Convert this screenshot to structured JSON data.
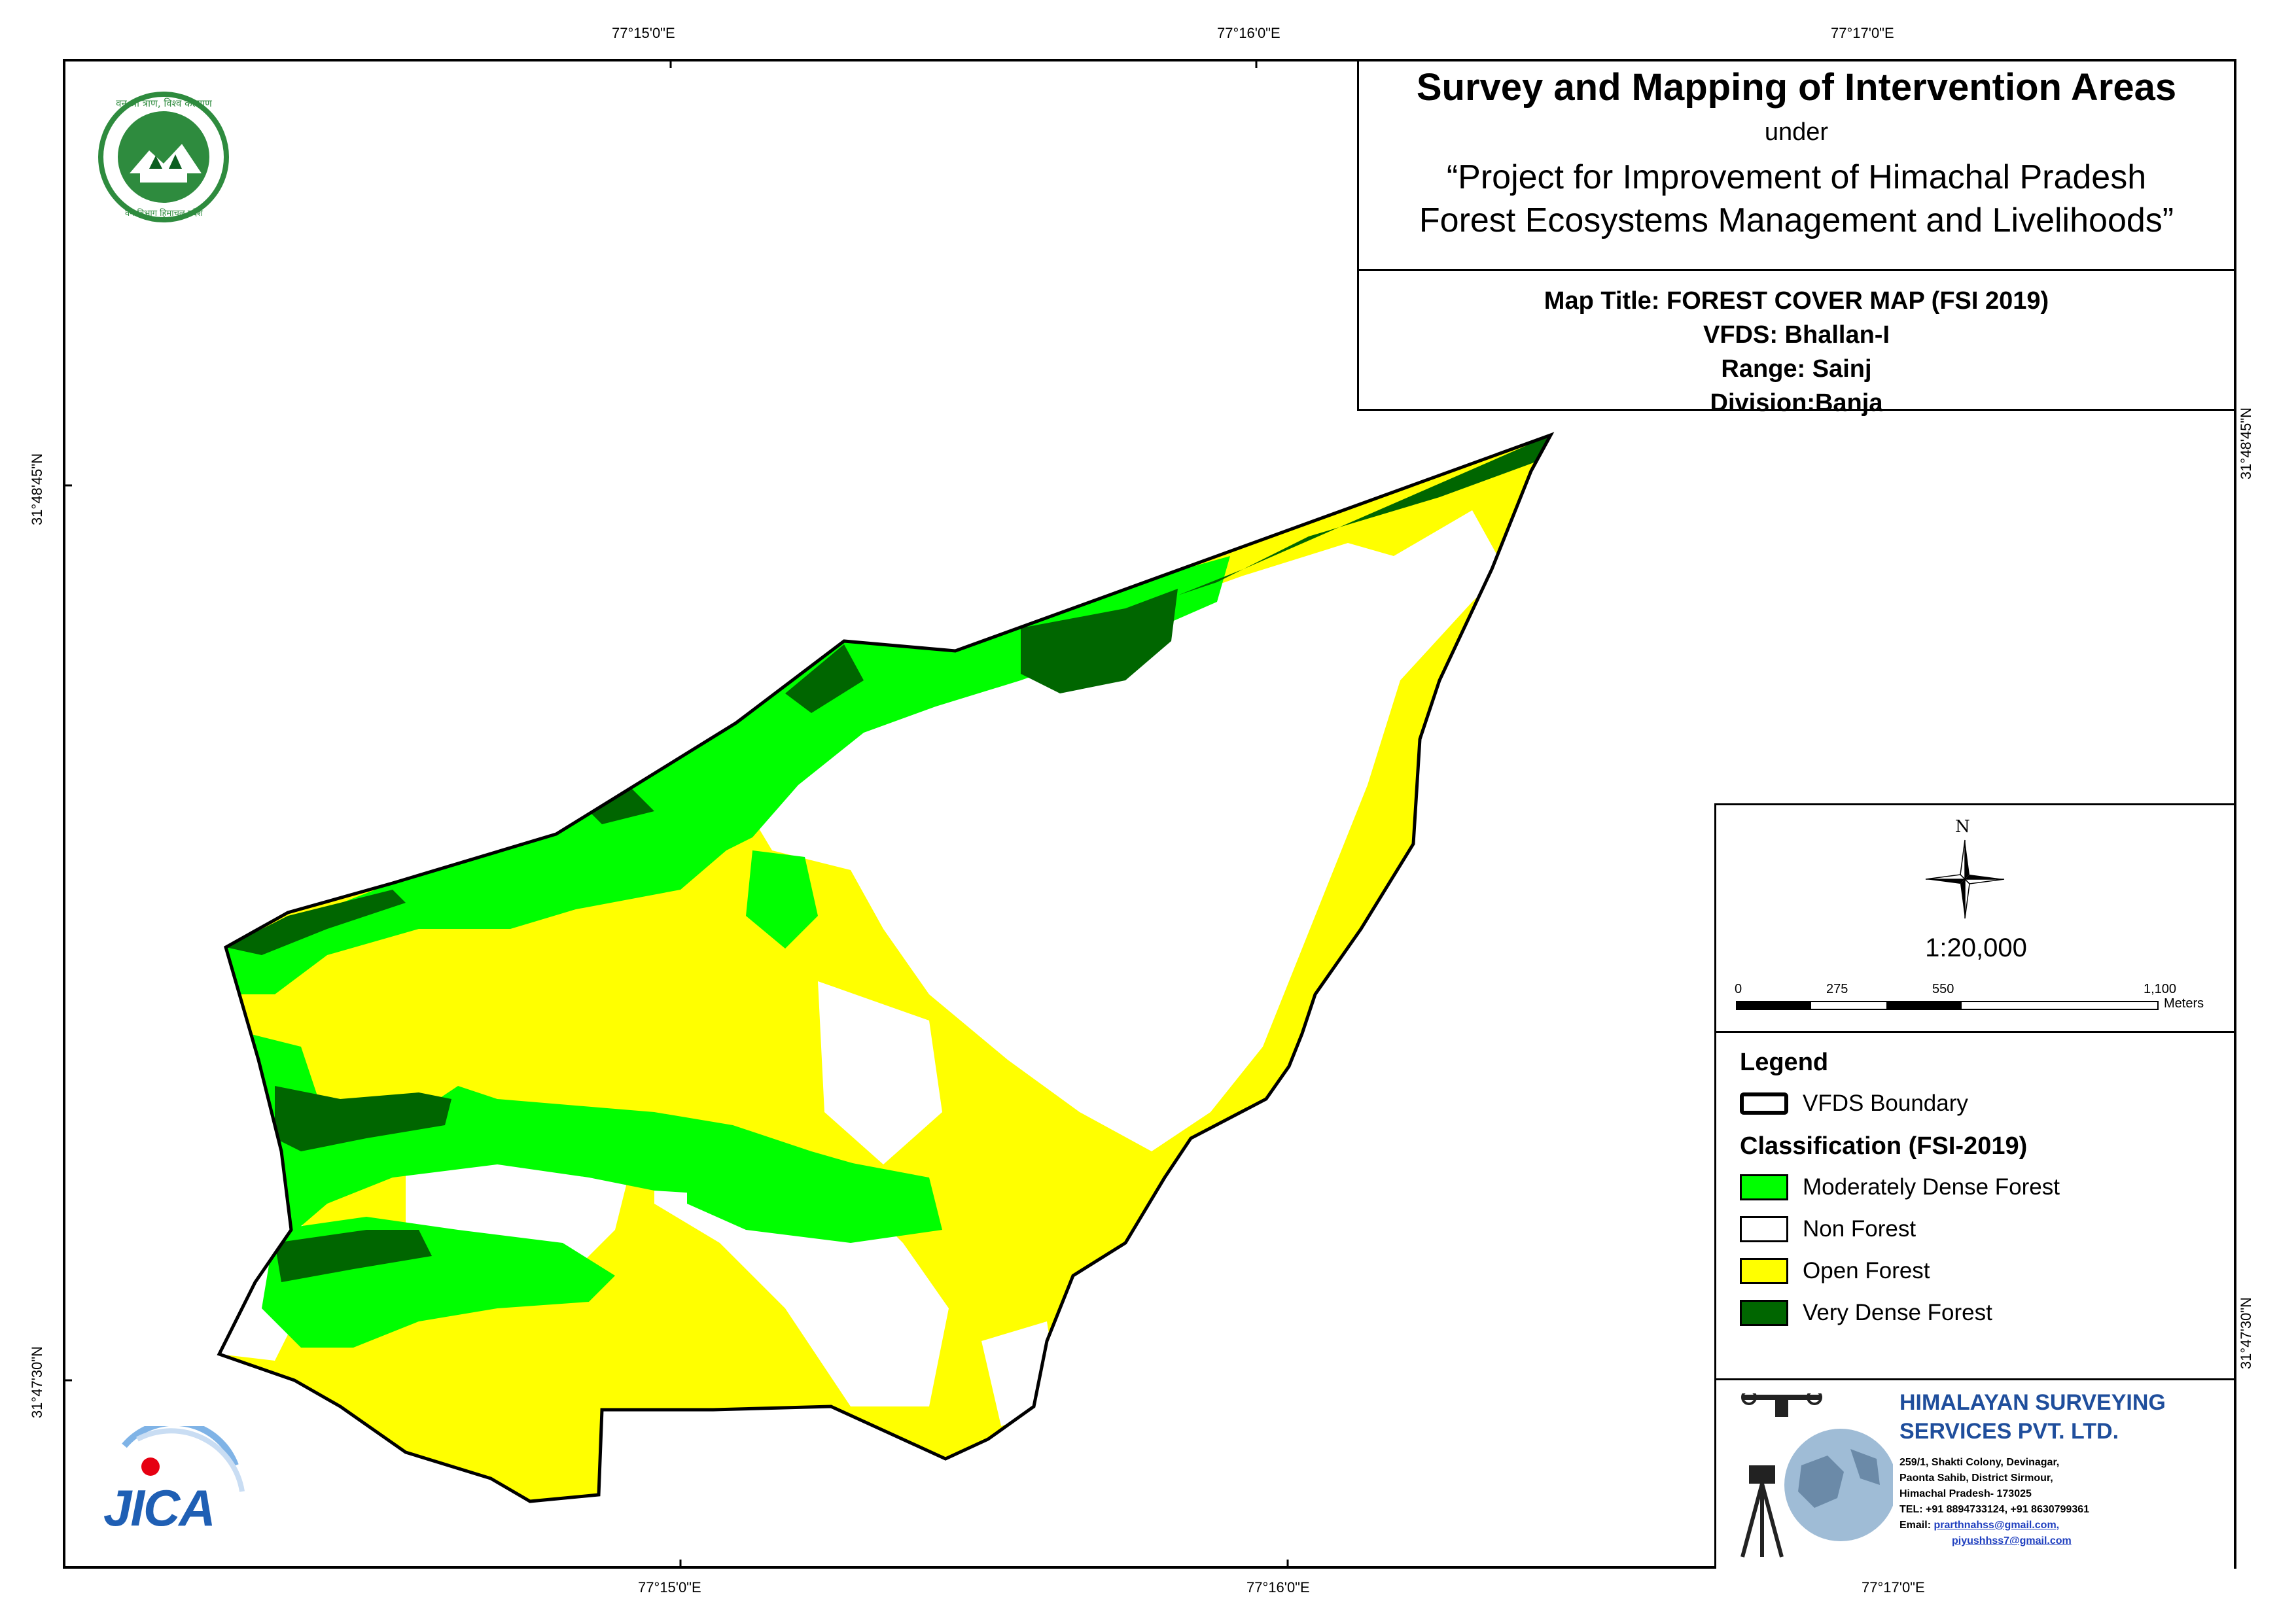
{
  "graticule": {
    "top": [
      "77°15'0\"E",
      "77°16'0\"E",
      "77°17'0\"E"
    ],
    "bottom": [
      "77°15'0\"E",
      "77°16'0\"E",
      "77°17'0\"E"
    ],
    "left": [
      "31°48'45\"N",
      "31°47'30\"N"
    ],
    "right": [
      "31°48'45\"N",
      "31°47'30\"N"
    ]
  },
  "title_block": {
    "main": "Survey and Mapping of Intervention Areas",
    "under": "under",
    "project_line1": "“Project for Improvement of Himachal Pradesh",
    "project_line2": "Forest Ecosystems Management and Livelihoods”"
  },
  "map_info": {
    "map_title": "Map Title: FOREST COVER MAP (FSI 2019)",
    "vfds": "VFDS: Bhallan-I",
    "range": "Range: Sainj",
    "division": "Division:Banja"
  },
  "north_arrow": {
    "label": "N"
  },
  "scale": {
    "ratio": "1:20,000",
    "ticks": [
      "0",
      "275",
      "550",
      "1,100"
    ],
    "unit": "Meters"
  },
  "legend": {
    "title": "Legend",
    "boundary_label": "VFDS Boundary",
    "classification_title": "Classification (FSI-2019)",
    "classes": [
      {
        "label": "Moderately Dense Forest",
        "color": "#00ff00"
      },
      {
        "label": "Non Forest",
        "color": "#ffffff"
      },
      {
        "label": "Open Forest",
        "color": "#ffff00"
      },
      {
        "label": "Very Dense Forest",
        "color": "#006600"
      }
    ]
  },
  "company": {
    "name_line1": "HIMALAYAN SURVEYING",
    "name_line2": "SERVICES PVT. LTD.",
    "address1": "259/1, Shakti Colony, Devinagar,",
    "address2": "Paonta Sahib, District Sirmour,",
    "address3": "Himachal Pradesh- 173025",
    "tel": "TEL: +91 8894733124, +91 8630799361",
    "email_label": "Email:",
    "email1": "prarthnahss@gmail.com,",
    "email2": "piyushhss7@gmail.com"
  },
  "logos": {
    "hp_forest_top_text": "वन श्री त्राण, विश्व कल्याण",
    "hp_forest_bottom_text": "वन विभाग हिमाचल प्रदेश",
    "jica_text": "JICA"
  }
}
